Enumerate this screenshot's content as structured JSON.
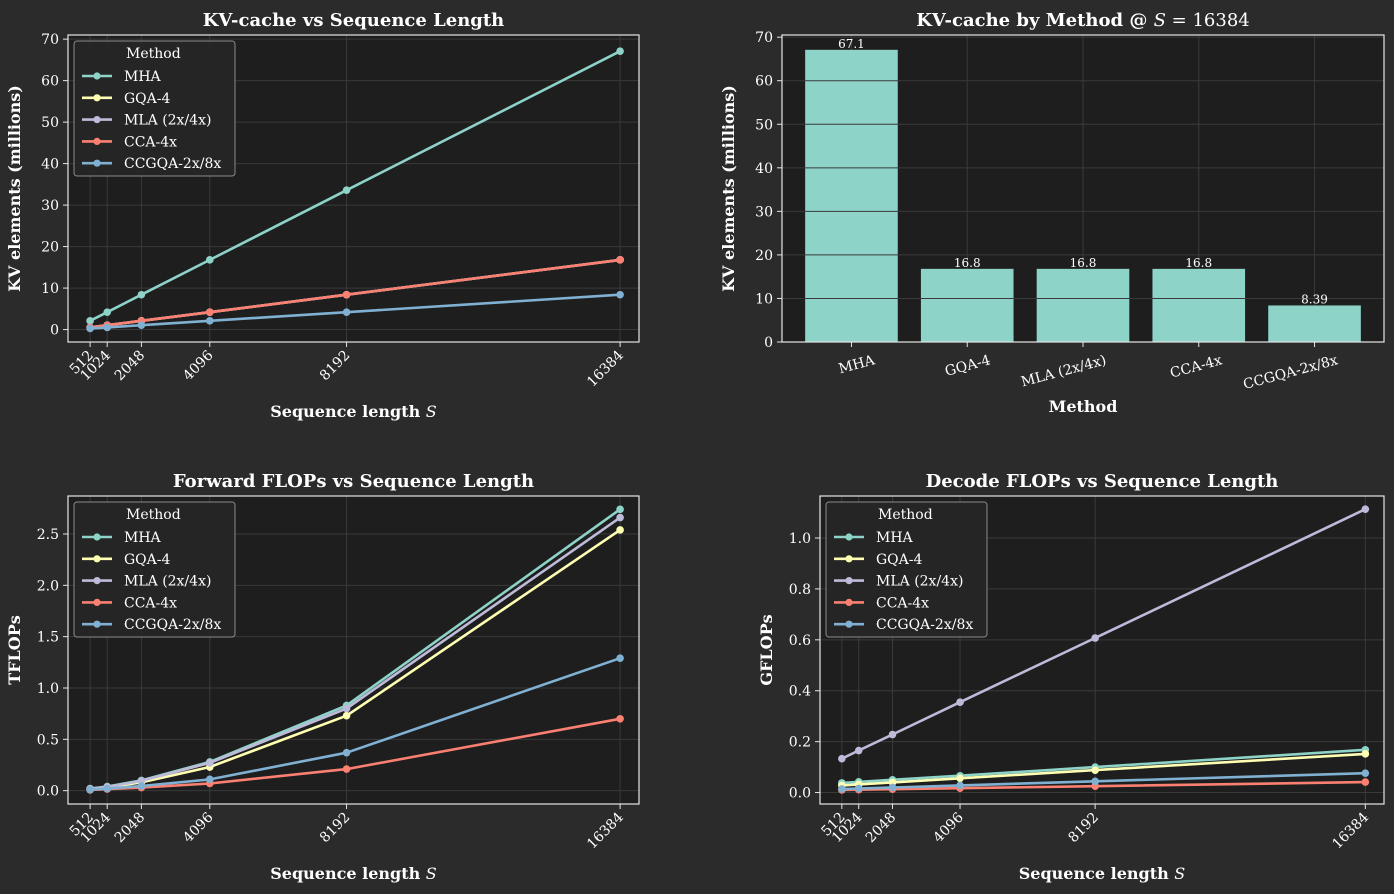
{
  "colors": {
    "background": "#2b2b2b",
    "axes_bg": "#1e1e1e",
    "grid": "#3a3a3a",
    "spine": "#e6e6e6",
    "text": "#ffffff"
  },
  "series_colors": {
    "MHA": "#8dd3c7",
    "GQA-4": "#ffffb3",
    "MLA (2x/4x)": "#bebada",
    "CCA-4x": "#fb8072",
    "CCGQA-2x/8x": "#80b1d3"
  },
  "chart_data": [
    {
      "type": "line",
      "title": "KV-cache vs Sequence Length",
      "xlabel": "Sequence length S",
      "ylabel": "KV elements (millions)",
      "x": [
        512,
        1024,
        2048,
        4096,
        8192,
        16384
      ],
      "xlim": [
        -150,
        16950
      ],
      "ylim": [
        -3,
        71
      ],
      "yticks": [
        0,
        10,
        20,
        30,
        40,
        50,
        60,
        70
      ],
      "ytick_labels": [
        "0",
        "10",
        "20",
        "30",
        "40",
        "50",
        "60",
        "70"
      ],
      "legend_title": "Method",
      "legend_loc": "upper-left",
      "series": [
        {
          "name": "MHA",
          "values": [
            2.1,
            4.19,
            8.39,
            16.8,
            33.6,
            67.1
          ]
        },
        {
          "name": "GQA-4",
          "values": [
            0.52,
            1.05,
            2.1,
            4.19,
            8.39,
            16.8
          ]
        },
        {
          "name": "MLA (2x/4x)",
          "values": [
            0.52,
            1.05,
            2.1,
            4.19,
            8.39,
            16.8
          ]
        },
        {
          "name": "CCA-4x",
          "values": [
            0.52,
            1.05,
            2.1,
            4.19,
            8.39,
            16.8
          ]
        },
        {
          "name": "CCGQA-2x/8x",
          "values": [
            0.26,
            0.52,
            1.05,
            2.1,
            4.19,
            8.39
          ]
        }
      ]
    },
    {
      "type": "bar",
      "title": "KV-cache by Method @ S = 16384",
      "xlabel": "Method",
      "ylabel": "KV elements (millions)",
      "categories": [
        "MHA",
        "GQA-4",
        "MLA (2x/4x)",
        "CCA-4x",
        "CCGQA-2x/8x"
      ],
      "values": [
        67.1,
        16.8,
        16.8,
        16.8,
        8.39
      ],
      "value_labels": [
        "67.1",
        "16.8",
        "16.8",
        "16.8",
        "8.39"
      ],
      "ylim": [
        0,
        70.5
      ],
      "yticks": [
        0,
        10,
        20,
        30,
        40,
        50,
        60,
        70
      ],
      "ytick_labels": [
        "0",
        "10",
        "20",
        "30",
        "40",
        "50",
        "60",
        "70"
      ],
      "bar_color": "#8dd3c7"
    },
    {
      "type": "line",
      "title": "Forward FLOPs vs Sequence Length",
      "xlabel": "Sequence length S",
      "ylabel": "TFLOPs",
      "x": [
        512,
        1024,
        2048,
        4096,
        8192,
        16384
      ],
      "xlim": [
        -150,
        16950
      ],
      "ylim": [
        -0.13,
        2.87
      ],
      "yticks": [
        0,
        0.5,
        1,
        1.5,
        2,
        2.5
      ],
      "ytick_labels": [
        "0.0",
        "0.5",
        "1.0",
        "1.5",
        "2.0",
        "2.5"
      ],
      "legend_title": "Method",
      "legend_loc": "upper-left",
      "series": [
        {
          "name": "MHA",
          "values": [
            0.02,
            0.04,
            0.1,
            0.28,
            0.83,
            2.74
          ]
        },
        {
          "name": "GQA-4",
          "values": [
            0.015,
            0.03,
            0.08,
            0.23,
            0.73,
            2.54
          ]
        },
        {
          "name": "MLA (2x/4x)",
          "values": [
            0.018,
            0.035,
            0.095,
            0.27,
            0.8,
            2.66
          ]
        },
        {
          "name": "CCA-4x",
          "values": [
            0.007,
            0.015,
            0.03,
            0.07,
            0.21,
            0.7
          ]
        },
        {
          "name": "CCGQA-2x/8x",
          "values": [
            0.01,
            0.02,
            0.045,
            0.11,
            0.37,
            1.29
          ]
        }
      ]
    },
    {
      "type": "line",
      "title": "Decode FLOPs vs Sequence Length",
      "xlabel": "Sequence length S",
      "ylabel": "GFLOPs",
      "x": [
        512,
        1024,
        2048,
        4096,
        8192,
        16384
      ],
      "xlim": [
        -150,
        16950
      ],
      "ylim": [
        -0.045,
        1.165
      ],
      "yticks": [
        0,
        0.2,
        0.4,
        0.6,
        0.8,
        1.0
      ],
      "ytick_labels": [
        "0.0",
        "0.2",
        "0.4",
        "0.6",
        "0.8",
        "1.0"
      ],
      "legend_title": "Method",
      "legend_loc": "upper-left",
      "series": [
        {
          "name": "MHA",
          "values": [
            0.038,
            0.042,
            0.05,
            0.066,
            0.1,
            0.168
          ]
        },
        {
          "name": "GQA-4",
          "values": [
            0.028,
            0.032,
            0.04,
            0.056,
            0.088,
            0.152
          ]
        },
        {
          "name": "MLA (2x/4x)",
          "values": [
            0.133,
            0.165,
            0.228,
            0.355,
            0.607,
            1.113
          ]
        },
        {
          "name": "CCA-4x",
          "values": [
            0.01,
            0.011,
            0.013,
            0.017,
            0.025,
            0.041
          ]
        },
        {
          "name": "CCGQA-2x/8x",
          "values": [
            0.014,
            0.016,
            0.02,
            0.028,
            0.044,
            0.076
          ]
        }
      ]
    }
  ]
}
